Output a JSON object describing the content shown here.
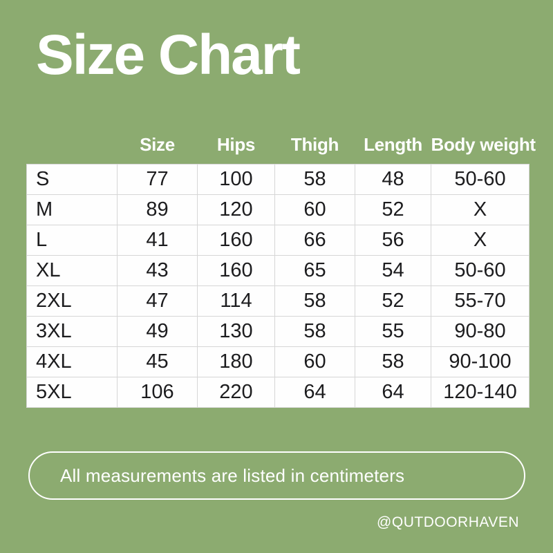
{
  "page": {
    "title": "Size Chart",
    "note": "All measurements are listed in centimeters",
    "handle": "@QUTDOORHAVEN"
  },
  "colors": {
    "background": "#8cab70",
    "table_text": "#1c1c1e",
    "table_border": "#d6d6d6",
    "heading_text": "#ffffff",
    "cell_background": "#fefefe"
  },
  "table": {
    "corner_header": "",
    "columns": [
      "Size",
      "Hips",
      "Thigh",
      "Length",
      "Body weight"
    ],
    "rows": [
      [
        "S",
        "77",
        "100",
        "58",
        "48",
        "50-60"
      ],
      [
        "M",
        "89",
        "120",
        "60",
        "52",
        "X"
      ],
      [
        "L",
        "41",
        "160",
        "66",
        "56",
        "X"
      ],
      [
        "XL",
        "43",
        "160",
        "65",
        "54",
        "50-60"
      ],
      [
        "2XL",
        "47",
        "114",
        "58",
        "52",
        "55-70"
      ],
      [
        "3XL",
        "49",
        "130",
        "58",
        "55",
        "90-80"
      ],
      [
        "4XL",
        "45",
        "180",
        "60",
        "58",
        "90-100"
      ],
      [
        "5XL",
        "106",
        "220",
        "64",
        "64",
        "120-140"
      ]
    ]
  }
}
